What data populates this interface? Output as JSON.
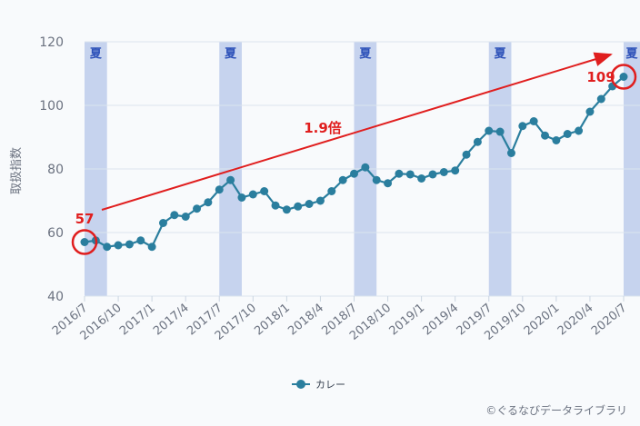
{
  "chart_data": {
    "type": "line",
    "ylabel": "取扱指数",
    "ylim": [
      40,
      120
    ],
    "yticks": [
      40,
      60,
      80,
      100,
      120
    ],
    "x_tick_labels": [
      "2016/7",
      "2016/10",
      "2017/1",
      "2017/4",
      "2017/7",
      "2017/10",
      "2018/1",
      "2018/4",
      "2018/7",
      "2018/10",
      "2019/1",
      "2019/4",
      "2019/7",
      "2019/10",
      "2020/1",
      "2020/4",
      "2020/7"
    ],
    "grid": "horizontal",
    "legend_position": "bottom-center",
    "summer_label": "夏",
    "summer_periods": [
      {
        "start": "2016/7",
        "end": "2016/9"
      },
      {
        "start": "2017/7",
        "end": "2017/9"
      },
      {
        "start": "2018/7",
        "end": "2018/9"
      },
      {
        "start": "2019/7",
        "end": "2019/9"
      },
      {
        "start": "2020/7",
        "end": "2020/9"
      }
    ],
    "series": [
      {
        "name": "カレー",
        "color": "#2a7e9e",
        "x": [
          "2016/7",
          "2016/8",
          "2016/9",
          "2016/10",
          "2016/11",
          "2016/12",
          "2017/1",
          "2017/2",
          "2017/3",
          "2017/4",
          "2017/5",
          "2017/6",
          "2017/7",
          "2017/8",
          "2017/9",
          "2017/10",
          "2017/11",
          "2017/12",
          "2018/1",
          "2018/2",
          "2018/3",
          "2018/4",
          "2018/5",
          "2018/6",
          "2018/7",
          "2018/8",
          "2018/9",
          "2018/10",
          "2018/11",
          "2018/12",
          "2019/1",
          "2019/2",
          "2019/3",
          "2019/4",
          "2019/5",
          "2019/6",
          "2019/7",
          "2019/8",
          "2019/9",
          "2019/10",
          "2019/11",
          "2019/12",
          "2020/1",
          "2020/2",
          "2020/3",
          "2020/4",
          "2020/5",
          "2020/6",
          "2020/7"
        ],
        "values": [
          57,
          57.5,
          55.5,
          56,
          56.3,
          57.5,
          55.5,
          63,
          65.5,
          65,
          67.5,
          69.5,
          73.5,
          76.5,
          71,
          72,
          73,
          68.5,
          67.2,
          68.2,
          69,
          70,
          73,
          76.5,
          78.5,
          80.5,
          76.5,
          75.5,
          78.5,
          78.3,
          77,
          78.3,
          79,
          79.5,
          84.5,
          88.5,
          92,
          91.7,
          85,
          93.5,
          95,
          90.5,
          89,
          91,
          92,
          98,
          102,
          106,
          109
        ]
      }
    ],
    "annotations": {
      "start_value_label": "57",
      "end_value_label": "109",
      "growth_label": "1.9倍"
    },
    "credit": "©ぐるなびデータライブラリ"
  }
}
